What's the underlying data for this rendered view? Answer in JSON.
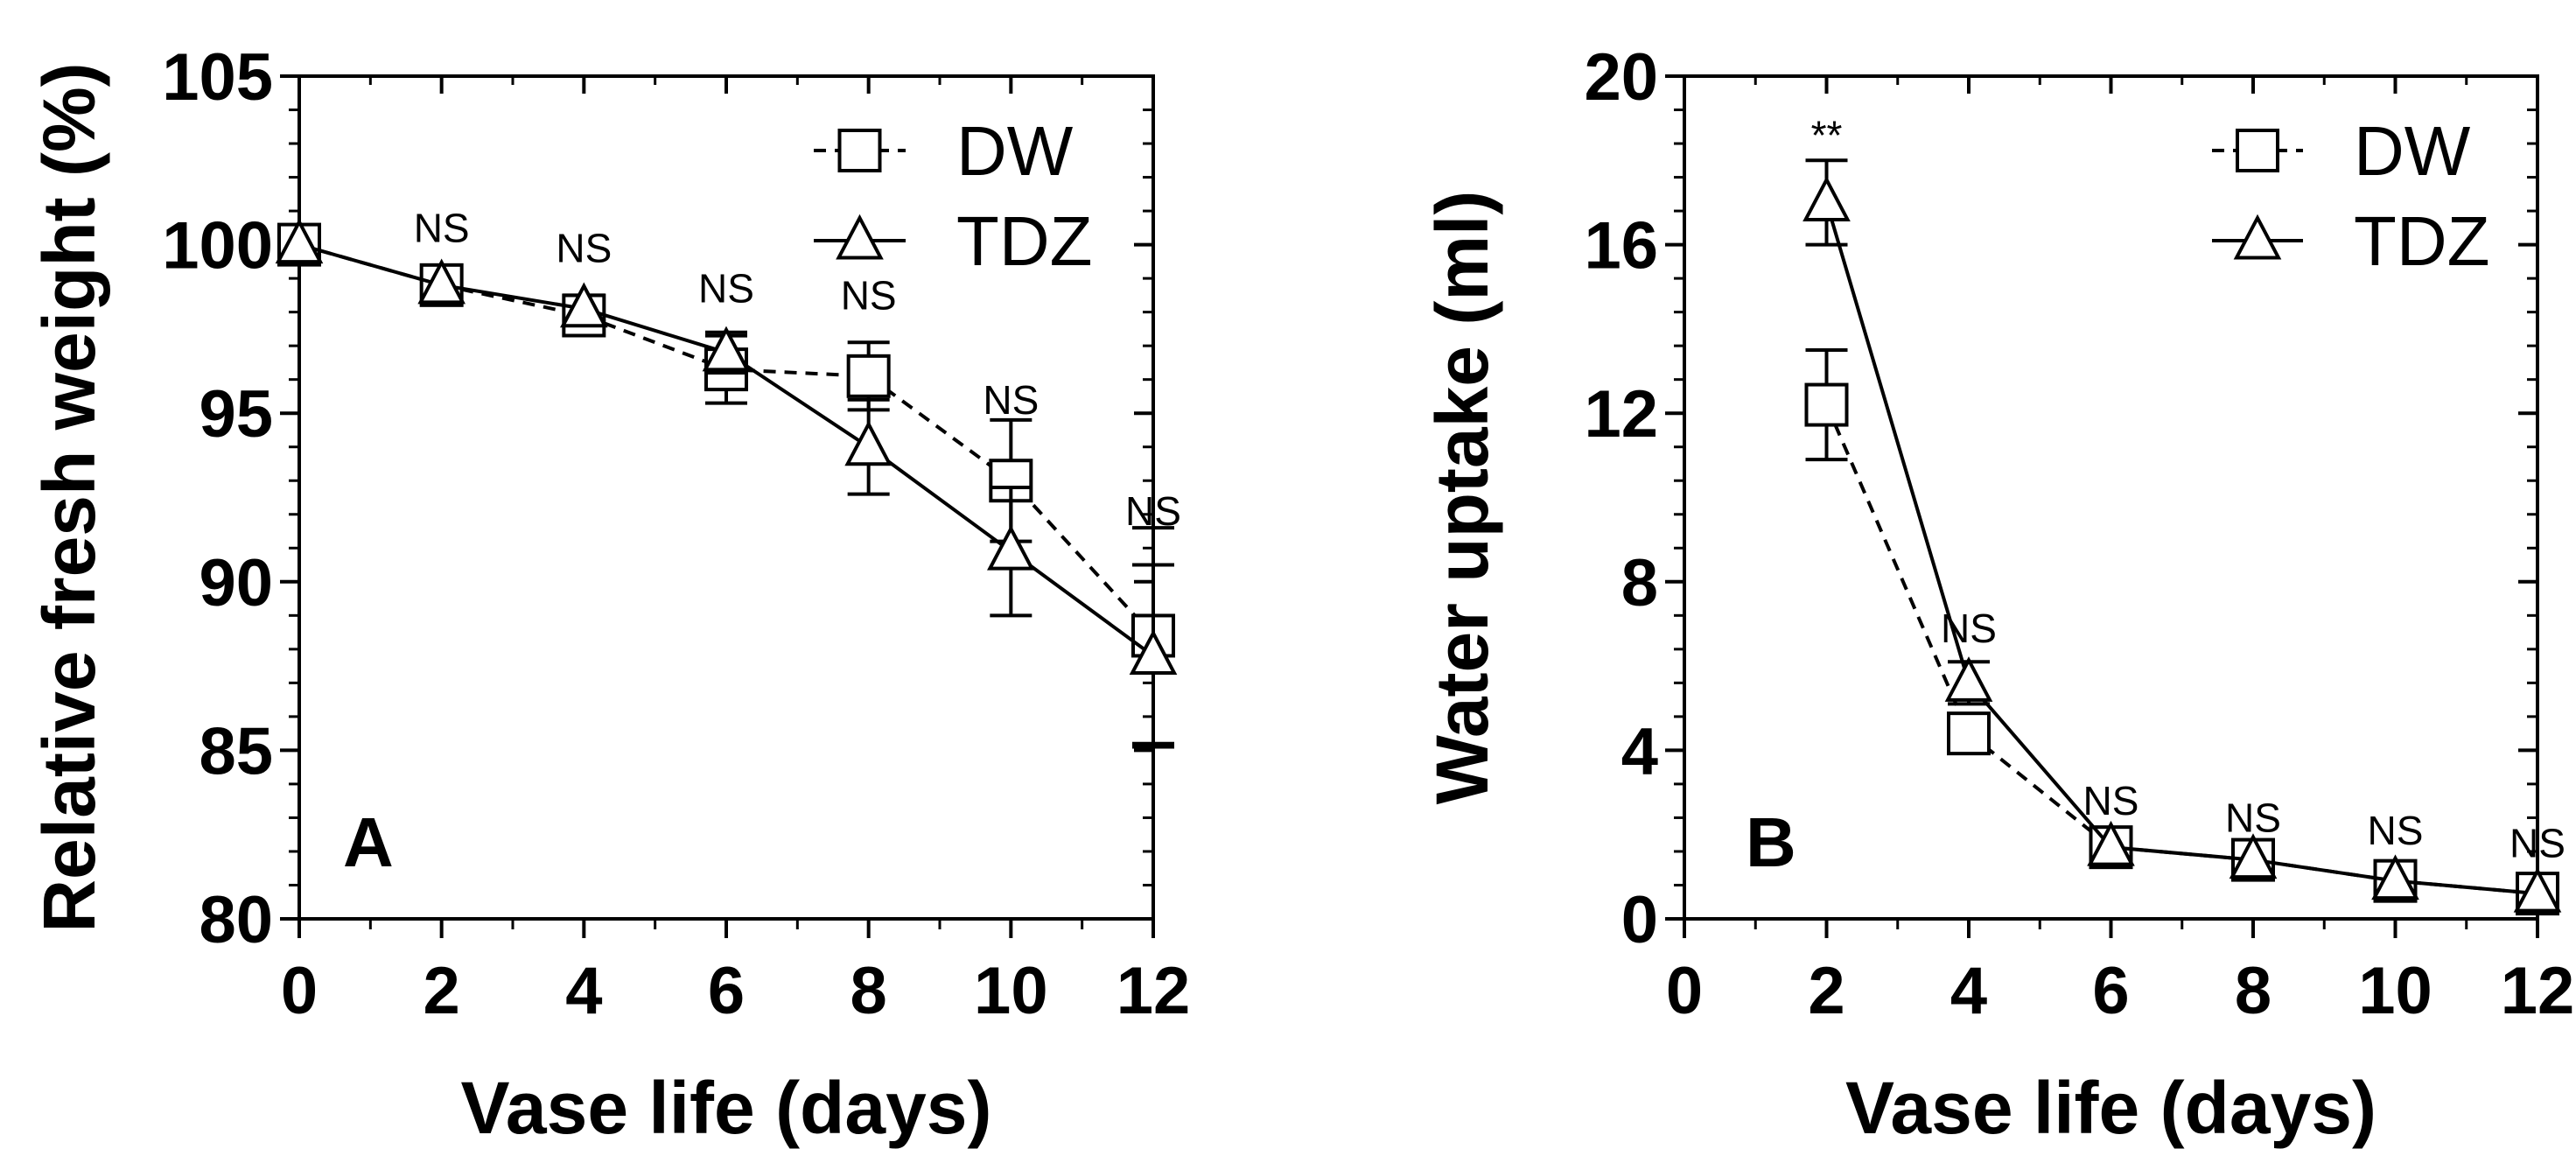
{
  "chart_data": [
    {
      "type": "line",
      "panel_label": "A",
      "xlabel": "Vase life (days)",
      "ylabel": "Relative fresh weight (%)",
      "xlim": [
        0,
        12
      ],
      "ylim": [
        80,
        105
      ],
      "xticks": [
        "0",
        "2",
        "4",
        "6",
        "8",
        "10",
        "12"
      ],
      "yticks": [
        "80",
        "85",
        "90",
        "95",
        "100",
        "105"
      ],
      "xtick_values": [
        0,
        2,
        4,
        6,
        8,
        10,
        12
      ],
      "ytick_values": [
        80,
        85,
        90,
        95,
        100,
        105
      ],
      "legend": {
        "position": "top-right",
        "entries": [
          "DW",
          "TDZ"
        ]
      },
      "x": [
        0,
        2,
        4,
        6,
        8,
        10,
        12
      ],
      "series": [
        {
          "name": "DW",
          "marker": "square",
          "line": "dashed",
          "values": [
            100,
            98.8,
            97.9,
            96.3,
            96.1,
            93.0,
            88.4
          ],
          "errors": [
            0.3,
            0.3,
            0.4,
            1.0,
            1.0,
            1.8,
            3.2
          ]
        },
        {
          "name": "TDZ",
          "marker": "triangle",
          "line": "solid",
          "values": [
            100,
            98.8,
            98.1,
            96.8,
            94.0,
            90.9,
            87.8
          ],
          "errors": [
            0.3,
            0.3,
            0.4,
            0.6,
            1.4,
            1.9,
            2.7
          ]
        }
      ],
      "annotations": [
        {
          "x": 2,
          "y": 100.5,
          "text": "NS"
        },
        {
          "x": 4,
          "y": 99.9,
          "text": "NS"
        },
        {
          "x": 6,
          "y": 98.7,
          "text": "NS"
        },
        {
          "x": 8,
          "y": 98.5,
          "text": "NS"
        },
        {
          "x": 10,
          "y": 95.4,
          "text": "NS"
        },
        {
          "x": 12,
          "y": 92.1,
          "text": "NS"
        }
      ]
    },
    {
      "type": "line",
      "panel_label": "B",
      "xlabel": "Vase life (days)",
      "ylabel": "Water uptake (ml)",
      "xlim": [
        0,
        12
      ],
      "ylim": [
        0,
        20
      ],
      "xticks": [
        "0",
        "2",
        "4",
        "6",
        "8",
        "10",
        "12"
      ],
      "yticks": [
        "0",
        "4",
        "8",
        "12",
        "16",
        "20"
      ],
      "xtick_values": [
        0,
        2,
        4,
        6,
        8,
        10,
        12
      ],
      "ytick_values": [
        0,
        4,
        8,
        12,
        16,
        20
      ],
      "legend": {
        "position": "top-right",
        "entries": [
          "DW",
          "TDZ"
        ]
      },
      "x": [
        2,
        4,
        6,
        8,
        10,
        12
      ],
      "series": [
        {
          "name": "DW",
          "marker": "square",
          "line": "dashed",
          "values": [
            12.2,
            4.4,
            1.7,
            1.4,
            0.9,
            0.6
          ],
          "errors": [
            1.3,
            0.3,
            0.1,
            0.1,
            0.1,
            0.1
          ]
        },
        {
          "name": "TDZ",
          "marker": "triangle",
          "line": "solid",
          "values": [
            17.0,
            5.6,
            1.7,
            1.4,
            0.9,
            0.6
          ],
          "errors": [
            1.0,
            0.5,
            0.1,
            0.1,
            0.1,
            0.1
          ]
        }
      ],
      "annotations": [
        {
          "x": 2,
          "y": 18.6,
          "text": "**"
        },
        {
          "x": 4,
          "y": 6.9,
          "text": "NS"
        },
        {
          "x": 6,
          "y": 2.8,
          "text": "NS"
        },
        {
          "x": 8,
          "y": 2.4,
          "text": "NS"
        },
        {
          "x": 10,
          "y": 2.1,
          "text": "NS"
        },
        {
          "x": 12,
          "y": 1.8,
          "text": "NS"
        }
      ]
    }
  ]
}
